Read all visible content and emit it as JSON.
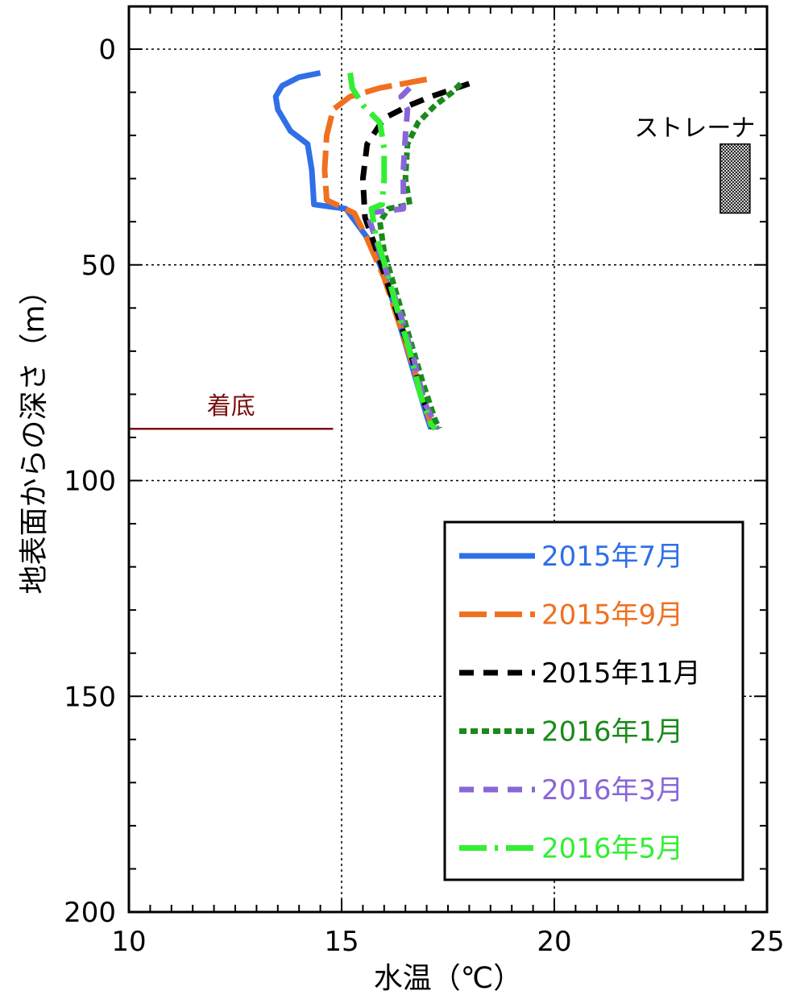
{
  "chart_data": {
    "type": "line",
    "xlabel": "水温（℃）",
    "ylabel": "地表面からの深さ（m）",
    "xlim": [
      10,
      25
    ],
    "ylim": [
      0,
      200
    ],
    "y_inverted": true,
    "x_ticks": [
      "10",
      "15",
      "20",
      "25"
    ],
    "y_ticks": [
      "0",
      "50",
      "100",
      "150",
      "200"
    ],
    "grid": "dotted major gridlines",
    "legend_position": "bottom-right",
    "annotations": {
      "bottom_label": "着底",
      "bottom_depth": 88,
      "bottom_x_range": [
        10,
        14.8
      ],
      "strainer_label": "ストレーナ",
      "strainer_depth_range": [
        22,
        38
      ],
      "strainer_x_range": [
        23.9,
        24.6
      ]
    },
    "series": [
      {
        "name": "2015年7月",
        "color": "#2f6fe8",
        "dash": "solid",
        "points": [
          [
            14.5,
            5.5
          ],
          [
            14.0,
            6.5
          ],
          [
            13.6,
            8.5
          ],
          [
            13.45,
            11
          ],
          [
            13.5,
            14
          ],
          [
            13.8,
            19
          ],
          [
            14.2,
            22
          ],
          [
            14.3,
            28
          ],
          [
            14.35,
            36
          ],
          [
            15.1,
            37
          ],
          [
            15.7,
            45
          ],
          [
            16.1,
            55
          ],
          [
            16.4,
            65
          ],
          [
            16.7,
            75
          ],
          [
            17.0,
            85
          ],
          [
            17.1,
            88
          ]
        ]
      },
      {
        "name": "2015年9月",
        "color": "#f07020",
        "dash": "long-dash",
        "points": [
          [
            17.0,
            7
          ],
          [
            15.9,
            9
          ],
          [
            15.2,
            11
          ],
          [
            14.8,
            14
          ],
          [
            14.65,
            20
          ],
          [
            14.6,
            28
          ],
          [
            14.65,
            35
          ],
          [
            15.3,
            38
          ],
          [
            15.6,
            44
          ],
          [
            16.0,
            53
          ],
          [
            16.3,
            62
          ],
          [
            16.6,
            71
          ],
          [
            16.9,
            80
          ],
          [
            17.1,
            87
          ],
          [
            17.2,
            88
          ]
        ]
      },
      {
        "name": "2015年11月",
        "color": "#000000",
        "dash": "dash",
        "points": [
          [
            18.0,
            8
          ],
          [
            17.1,
            11
          ],
          [
            16.6,
            13
          ],
          [
            16.0,
            16
          ],
          [
            15.6,
            22
          ],
          [
            15.5,
            30
          ],
          [
            15.55,
            39
          ],
          [
            15.8,
            46
          ],
          [
            16.1,
            55
          ],
          [
            16.4,
            64
          ],
          [
            16.7,
            73
          ],
          [
            16.95,
            82
          ],
          [
            17.15,
            88
          ]
        ]
      },
      {
        "name": "2016年1月",
        "color": "#1a8a1a",
        "dash": "short-dash",
        "points": [
          [
            17.8,
            8
          ],
          [
            17.6,
            10
          ],
          [
            17.2,
            13
          ],
          [
            16.8,
            17
          ],
          [
            16.55,
            22
          ],
          [
            16.5,
            30
          ],
          [
            16.6,
            36
          ],
          [
            16.1,
            37
          ],
          [
            15.9,
            40
          ],
          [
            16.0,
            47
          ],
          [
            16.3,
            57
          ],
          [
            16.6,
            67
          ],
          [
            16.9,
            77
          ],
          [
            17.2,
            86
          ],
          [
            17.3,
            88
          ]
        ]
      },
      {
        "name": "2016年3月",
        "color": "#8866d8",
        "dash": "dash",
        "points": [
          [
            16.6,
            9
          ],
          [
            16.4,
            11
          ],
          [
            16.55,
            14
          ],
          [
            16.5,
            20
          ],
          [
            16.45,
            28
          ],
          [
            16.45,
            37
          ],
          [
            15.6,
            38
          ],
          [
            15.8,
            44
          ],
          [
            16.1,
            53
          ],
          [
            16.4,
            62
          ],
          [
            16.7,
            72
          ],
          [
            16.95,
            82
          ],
          [
            17.2,
            87
          ],
          [
            17.25,
            88
          ]
        ]
      },
      {
        "name": "2016年5月",
        "color": "#33ee33",
        "dash": "long-dash-dot",
        "points": [
          [
            15.2,
            5.5
          ],
          [
            15.25,
            9
          ],
          [
            15.5,
            13
          ],
          [
            15.9,
            17
          ],
          [
            16.0,
            23
          ],
          [
            16.0,
            30
          ],
          [
            15.95,
            36
          ],
          [
            15.7,
            37
          ],
          [
            15.8,
            43
          ],
          [
            16.05,
            51
          ],
          [
            16.3,
            60
          ],
          [
            16.6,
            70
          ],
          [
            16.85,
            80
          ],
          [
            17.1,
            87
          ],
          [
            17.2,
            88
          ]
        ]
      }
    ]
  }
}
